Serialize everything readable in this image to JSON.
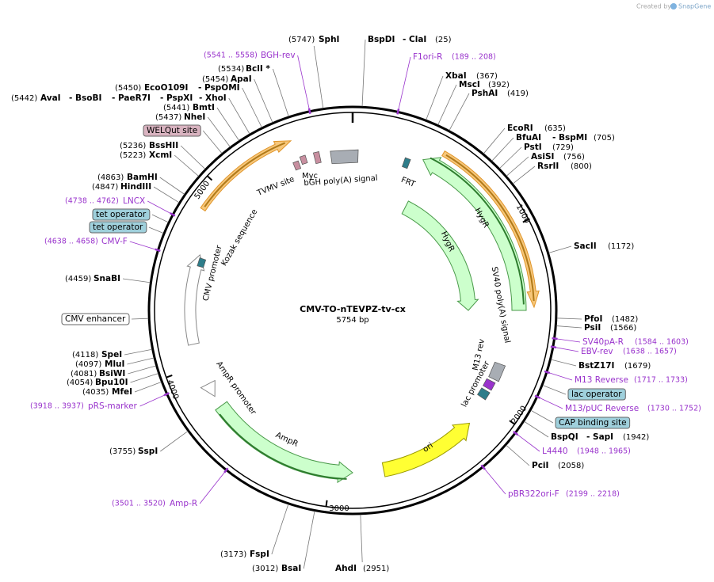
{
  "watermark": {
    "prefix": "Created by",
    "brand": "SnapGene"
  },
  "map": {
    "name": "CMV-TO-nTEVPZ-tv-cx",
    "size": "5754 bp"
  },
  "ruler": [
    "1000",
    "2000",
    "3000",
    "4000",
    "5000"
  ],
  "sites": [
    {
      "position": "(5747)",
      "names": [
        "SphI"
      ]
    },
    {
      "position": "(25)",
      "names": [
        "BspDI",
        "- ClaI"
      ]
    },
    {
      "position": "(5534)",
      "names": [
        "BclI *"
      ]
    },
    {
      "position": "(5454)",
      "names": [
        "ApaI"
      ]
    },
    {
      "position": "(5450)",
      "names": [
        "EcoO109I",
        "- PspOMI"
      ]
    },
    {
      "position": "(5442)",
      "names": [
        "AvaI",
        "- BsoBI",
        "- PaeR7I",
        "- PspXI",
        "- XhoI"
      ]
    },
    {
      "position": "(5441)",
      "names": [
        "BmtI"
      ]
    },
    {
      "position": "(5437)",
      "names": [
        "NheI"
      ]
    },
    {
      "position": "(5236)",
      "names": [
        "BssHII"
      ]
    },
    {
      "position": "(5223)",
      "names": [
        "XcmI"
      ]
    },
    {
      "position": "(4863)",
      "names": [
        "BamHI"
      ]
    },
    {
      "position": "(4847)",
      "names": [
        "HindIII"
      ]
    },
    {
      "position": "(4459)",
      "names": [
        "SnaBI"
      ]
    },
    {
      "position": "(4118)",
      "names": [
        "SpeI"
      ]
    },
    {
      "position": "(4097)",
      "names": [
        "MluI"
      ]
    },
    {
      "position": "(4081)",
      "names": [
        "BsiWI"
      ]
    },
    {
      "position": "(4054)",
      "names": [
        "Bpu10I"
      ]
    },
    {
      "position": "(4035)",
      "names": [
        "MfeI"
      ]
    },
    {
      "position": "(3755)",
      "names": [
        "SspI"
      ]
    },
    {
      "position": "(3173)",
      "names": [
        "FspI"
      ]
    },
    {
      "position": "(3012)",
      "names": [
        "BsaI"
      ]
    },
    {
      "position": "(2951)",
      "names": [
        "AhdI"
      ]
    },
    {
      "position": "(367)",
      "names": [
        "XbaI"
      ]
    },
    {
      "position": "(392)",
      "names": [
        "MscI"
      ]
    },
    {
      "position": "(419)",
      "names": [
        "PshAI"
      ]
    },
    {
      "position": "(635)",
      "names": [
        "EcoRI"
      ]
    },
    {
      "position": "(705)",
      "names": [
        "BfuAI",
        "- BspMI"
      ]
    },
    {
      "position": "(729)",
      "names": [
        "PstI"
      ]
    },
    {
      "position": "(756)",
      "names": [
        "AsiSI"
      ]
    },
    {
      "position": "(800)",
      "names": [
        "RsrII"
      ]
    },
    {
      "position": "(1172)",
      "names": [
        "SacII"
      ]
    },
    {
      "position": "(1482)",
      "names": [
        "PfoI"
      ]
    },
    {
      "position": "(1566)",
      "names": [
        "PsiI"
      ]
    },
    {
      "position": "(1679)",
      "names": [
        "BstZ17I"
      ]
    },
    {
      "position": "(1942)",
      "names": [
        "BspQI",
        "- SapI"
      ]
    },
    {
      "position": "(2058)",
      "names": [
        "PciI"
      ]
    }
  ],
  "primers": [
    {
      "name": "BGH-rev",
      "range": "(5541 .. 5558)"
    },
    {
      "name": "F1ori-R",
      "range": "(189 .. 208)"
    },
    {
      "name": "LNCX",
      "range": "(4738 .. 4762)"
    },
    {
      "name": "CMV-F",
      "range": "(4638 .. 4658)"
    },
    {
      "name": "pRS-marker",
      "range": "(3918 .. 3937)"
    },
    {
      "name": "Amp-R",
      "range": "(3501 .. 3520)"
    },
    {
      "name": "SV40pA-R",
      "range": "(1584 .. 1603)"
    },
    {
      "name": "EBV-rev",
      "range": "(1638 .. 1657)"
    },
    {
      "name": "M13 Reverse",
      "range": "(1717 .. 1733)"
    },
    {
      "name": "M13/pUC Reverse",
      "range": "(1730 .. 1752)"
    },
    {
      "name": "L4440",
      "range": "(1948 .. 1965)"
    },
    {
      "name": "pBR322ori-F",
      "range": "(2199 .. 2218)"
    }
  ],
  "boxed_features": [
    "WELQut site",
    "tet operator",
    "tet operator",
    "CMV enhancer",
    "lac operator",
    "CAP binding site"
  ],
  "map_features": [
    "TVMV site",
    "Myc",
    "bGH poly(A) signal",
    "FRT",
    "HygR",
    "HygR",
    "SV40 poly(A) signal",
    "M13 rev",
    "lac promoter",
    "ori",
    "AmpR",
    "AmpR promoter",
    "CMV promoter",
    "Kozak sequence"
  ]
}
